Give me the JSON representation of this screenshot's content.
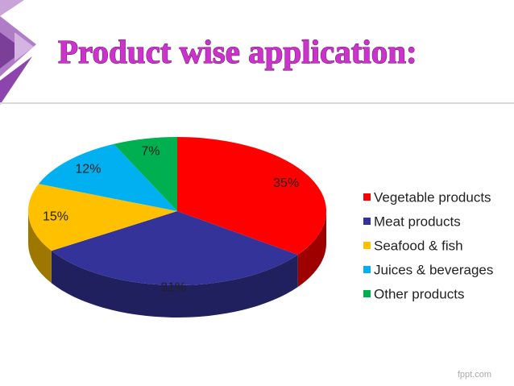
{
  "chart_data": {
    "type": "pie",
    "title": "Product wise application:",
    "categories": [
      "Vegetable products",
      "Meat products",
      "Seafood & fish",
      "Juices & beverages",
      "Other products"
    ],
    "values": [
      35,
      31,
      15,
      12,
      7
    ],
    "value_labels": [
      "35%",
      "31%",
      "15%",
      "12%",
      "7%"
    ],
    "colors": [
      "#ff0000",
      "#333399",
      "#ffc000",
      "#00b0f0",
      "#00b050"
    ],
    "legend": "right"
  },
  "footer": "fppt.com"
}
